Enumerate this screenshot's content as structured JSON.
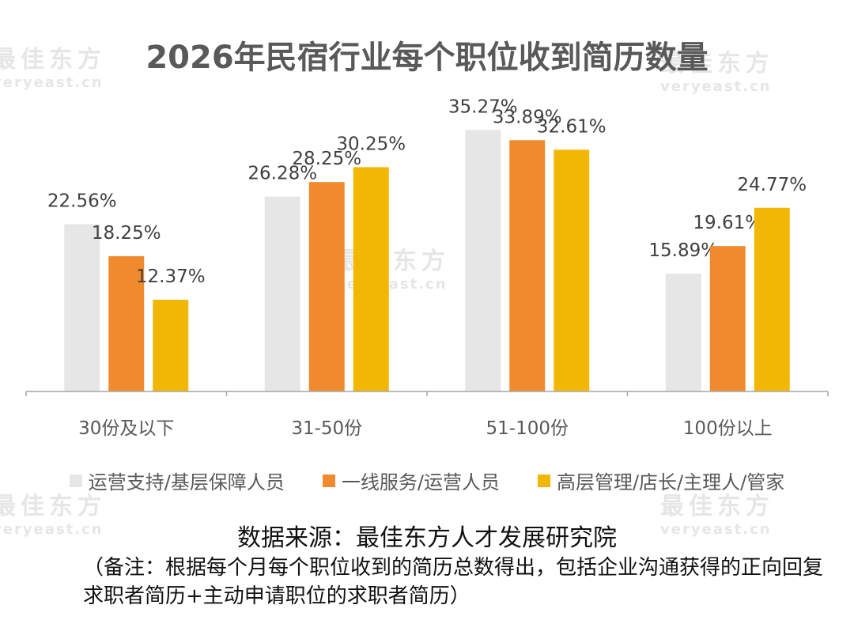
{
  "watermark": {
    "brand": "最佳东方",
    "url": "veryeast.cn"
  },
  "chart_data": {
    "type": "bar",
    "title": "2026年民宿行业每个职位收到简历数量",
    "categories": [
      "30份及以下",
      "31-50份",
      "51-100份",
      "100份以上"
    ],
    "series": [
      {
        "name": "运营支持/基层保障人员",
        "color": "#e6e6e6",
        "values": [
          22.56,
          26.28,
          35.27,
          15.89
        ]
      },
      {
        "name": "一线服务/运营人员",
        "color": "#f08a2e",
        "values": [
          18.25,
          28.25,
          33.89,
          19.61
        ]
      },
      {
        "name": "高层管理/店长/主理人/管家",
        "color": "#f2b705",
        "values": [
          12.37,
          30.25,
          32.61,
          24.77
        ]
      }
    ],
    "value_suffix": "%",
    "ylim": [
      0,
      40
    ],
    "grid": false,
    "legend_position": "bottom"
  },
  "source": "数据来源：最佳东方人才发展研究院",
  "note": "（备注：根据每个月每个职位收到的简历总数得出，包括企业沟通获得的正向回复求职者简历+主动申请职位的求职者简历）"
}
